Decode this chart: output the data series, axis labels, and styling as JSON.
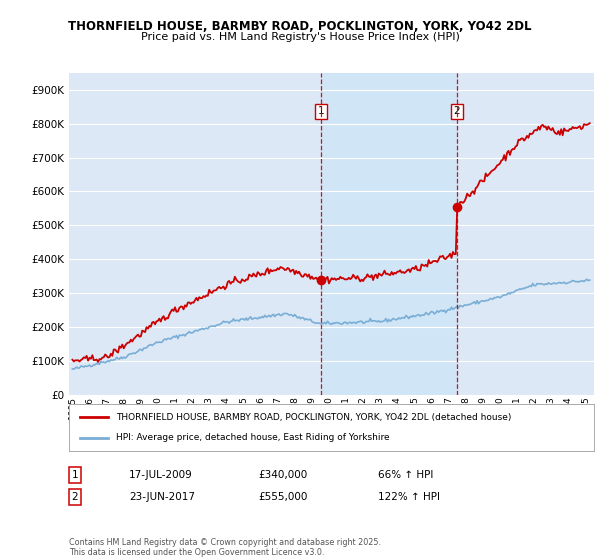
{
  "title1": "THORNFIELD HOUSE, BARMBY ROAD, POCKLINGTON, YORK, YO42 2DL",
  "title2": "Price paid vs. HM Land Registry's House Price Index (HPI)",
  "background_color": "#ffffff",
  "plot_bg_color": "#dce8f5",
  "grid_color": "#ffffff",
  "red_color": "#cc0000",
  "blue_color": "#7aaed6",
  "shade_color": "#dce8f5",
  "sale1_date_num": 2009.54,
  "sale2_date_num": 2017.48,
  "sale1_price": 340000,
  "sale2_price": 555000,
  "legend_line1": "THORNFIELD HOUSE, BARMBY ROAD, POCKLINGTON, YORK, YO42 2DL (detached house)",
  "legend_line2": "HPI: Average price, detached house, East Riding of Yorkshire",
  "table_row1": [
    "1",
    "17-JUL-2009",
    "£340,000",
    "66% ↑ HPI"
  ],
  "table_row2": [
    "2",
    "23-JUN-2017",
    "£555,000",
    "122% ↑ HPI"
  ],
  "footnote": "Contains HM Land Registry data © Crown copyright and database right 2025.\nThis data is licensed under the Open Government Licence v3.0.",
  "xmin": 1994.8,
  "xmax": 2025.5,
  "ymin": 0,
  "ymax": 950000,
  "yticks": [
    0,
    100000,
    200000,
    300000,
    400000,
    500000,
    600000,
    700000,
    800000,
    900000
  ]
}
